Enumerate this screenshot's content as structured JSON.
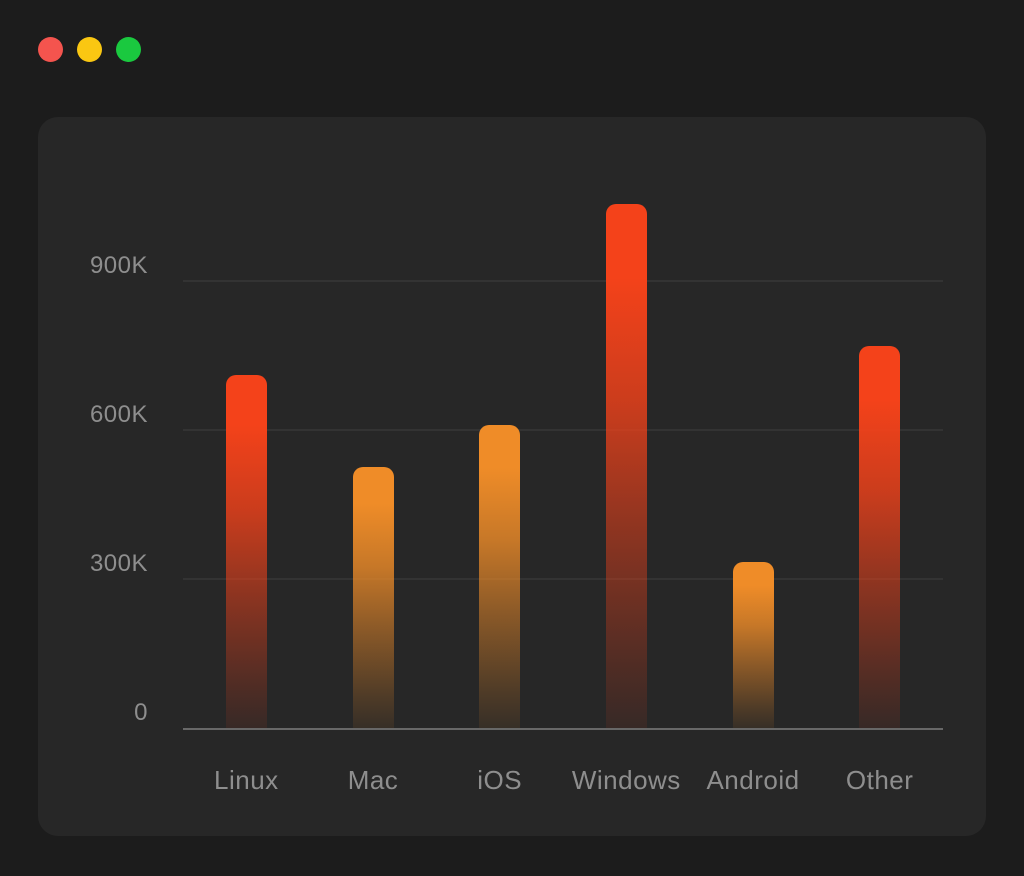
{
  "window": {
    "controls": [
      {
        "id": "close-button",
        "name": "close",
        "color": "#f4544e"
      },
      {
        "id": "minimize-button",
        "name": "minimize",
        "color": "#fac712"
      },
      {
        "id": "zoom-button",
        "name": "zoom",
        "color": "#1ac93f"
      }
    ]
  },
  "colors": {
    "outer_bg": "#1c1c1c",
    "panel_bg": "#272727",
    "grid_line": "rgba(255,255,255,0.06)",
    "axis_line": "#686868",
    "label_text": "#8e8e8e",
    "bar_red": "#f4421a",
    "bar_orange": "#ef8c28"
  },
  "chart_data": {
    "type": "bar",
    "title": "",
    "xlabel": "",
    "ylabel": "",
    "categories": [
      "Linux",
      "Mac",
      "iOS",
      "Windows",
      "Android",
      "Other"
    ],
    "values": [
      710000,
      525000,
      610000,
      1055000,
      335000,
      770000
    ],
    "bar_top_colors": [
      "#f4421a",
      "#ef8c28",
      "#ef8c28",
      "#f4421a",
      "#ef8c28",
      "#f4421a"
    ],
    "bar_gradient": "top color fading to transparent toward baseline",
    "y_ticks": [
      {
        "label": "0",
        "value": 0
      },
      {
        "label": "300K",
        "value": 300000
      },
      {
        "label": "600K",
        "value": 600000
      },
      {
        "label": "900K",
        "value": 900000
      }
    ],
    "ylim": [
      0,
      1100000
    ],
    "grid": "horizontal",
    "legend": "none"
  }
}
